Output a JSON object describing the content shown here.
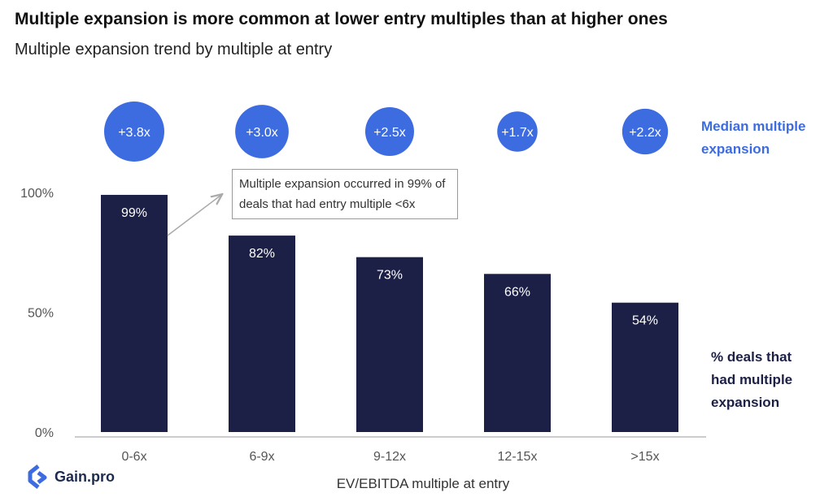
{
  "title": "Multiple expansion is more common at lower entry multiples than at higher ones",
  "subtitle": "Multiple expansion trend by multiple at entry",
  "annotation": "Multiple expansion occurred in 99% of deals that had entry multiple <6x",
  "legend_median": "Median multiple expansion",
  "legend_deals": "%  deals that\nhad multiple\nexpansion",
  "brand": "Gain.pro",
  "colors": {
    "bar": "#1c1f46",
    "bubble": "#3d6be0",
    "axis_text": "#555555"
  },
  "chart_data": {
    "type": "bar",
    "categories": [
      "0-6x",
      "6-9x",
      "9-12x",
      "12-15x",
      ">15x"
    ],
    "values": [
      99,
      82,
      73,
      66,
      54
    ],
    "bar_labels": [
      "99%",
      "82%",
      "73%",
      "66%",
      "54%"
    ],
    "median_expansion": [
      "+3.8x",
      "+3.0x",
      "+2.5x",
      "+1.7x",
      "+2.2x"
    ],
    "median_expansion_values": [
      3.8,
      3.0,
      2.5,
      1.7,
      2.2
    ],
    "yticks": [
      0,
      50,
      100
    ],
    "ytick_labels": [
      "0%",
      "50%",
      "100%"
    ],
    "ylim": [
      0,
      100
    ],
    "xlabel": "EV/EBITDA multiple at entry",
    "ylabel": "",
    "grid": false
  }
}
